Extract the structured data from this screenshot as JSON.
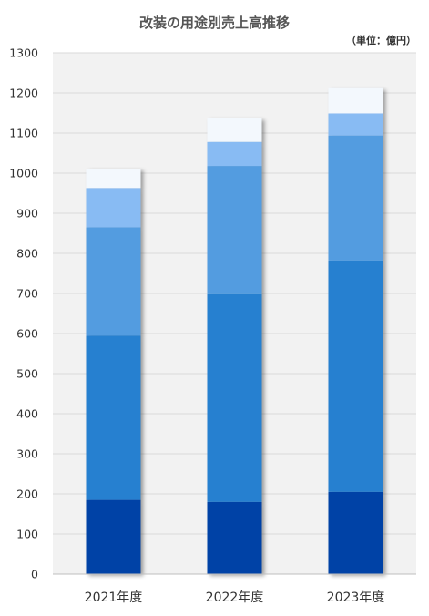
{
  "chart_data": {
    "type": "bar",
    "stacked": true,
    "title": "改装の用途別売上高推移",
    "unit_note": "（単位：億円）",
    "categories": [
      "2021年度",
      "2022年度",
      "2023年度"
    ],
    "ylim": [
      0,
      1300
    ],
    "yticks": [
      0,
      100,
      200,
      300,
      400,
      500,
      600,
      700,
      800,
      900,
      1000,
      1100,
      1200,
      1300
    ],
    "grid": true,
    "legend": "none",
    "series": [
      {
        "color": "#0542A6",
        "values": [
          185,
          180,
          205
        ]
      },
      {
        "color": "#2580D0",
        "values": [
          410,
          518,
          577
        ]
      },
      {
        "color": "#529CE0",
        "values": [
          270,
          320,
          312
        ]
      },
      {
        "color": "#88BBF3",
        "values": [
          98,
          60,
          55
        ]
      },
      {
        "color": "#F3F8FD",
        "values": [
          48,
          59,
          63
        ]
      }
    ]
  }
}
